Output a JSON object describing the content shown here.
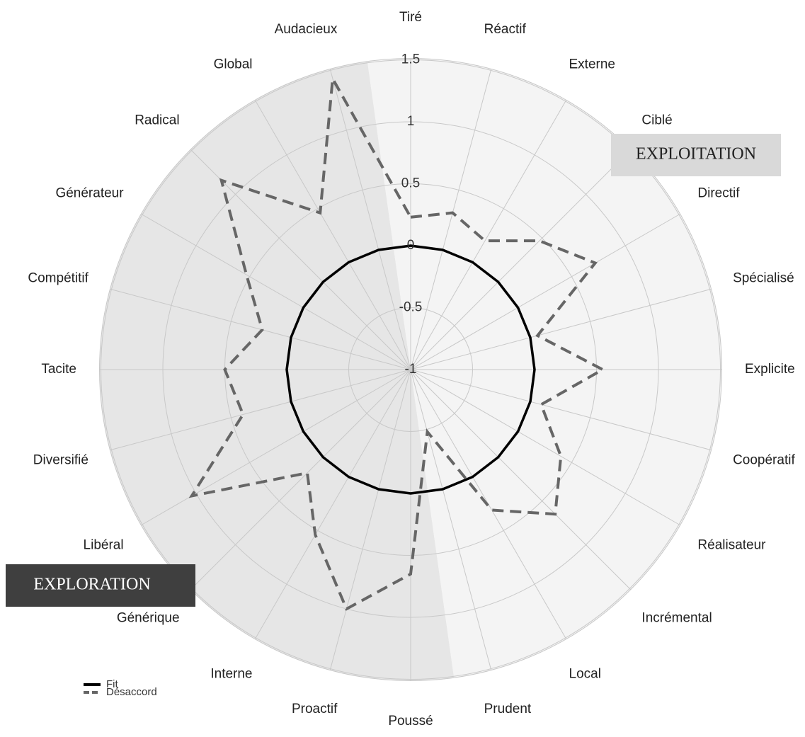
{
  "chart_data": {
    "type": "radar",
    "categories": [
      "Tiré",
      "Réactif",
      "Externe",
      "Ciblé",
      "Directif",
      "Spécialisé",
      "Explicite",
      "Coopératif",
      "Réalisateur",
      "Incrémental",
      "Local",
      "Prudent",
      "Poussé",
      "Proactif",
      "Interne",
      "Générique",
      "Libéral",
      "Diversifié",
      "Tacite",
      "Compétitif",
      "Générateur",
      "Radical",
      "Global",
      "Audacieux"
    ],
    "series": [
      {
        "name": "Fit",
        "color": "#000000",
        "values": [
          0,
          0,
          0,
          0,
          0,
          0,
          0,
          0,
          0,
          0,
          0,
          0,
          0,
          0,
          0,
          0,
          0,
          0,
          0,
          0,
          0,
          0,
          0,
          0
        ]
      },
      {
        "name": "Désaccord",
        "color": "#666666",
        "values": [
          0.23,
          0.31,
          0.2,
          0.47,
          0.72,
          0.06,
          0.55,
          0.09,
          0.4,
          0.65,
          0.31,
          -0.48,
          0.65,
          1.0,
          0.54,
          0.18,
          1.04,
          0.4,
          0.5,
          0.24,
          0.53,
          1.16,
          0.46,
          1.43
        ]
      }
    ],
    "ylim": [
      -1,
      1.5
    ],
    "yticks": [
      -1,
      -0.5,
      0,
      0.5,
      1,
      1.5
    ],
    "grid": true,
    "annotations": [
      "EXPLOITATION",
      "EXPLORATION"
    ],
    "legend": "bottom-left"
  }
}
